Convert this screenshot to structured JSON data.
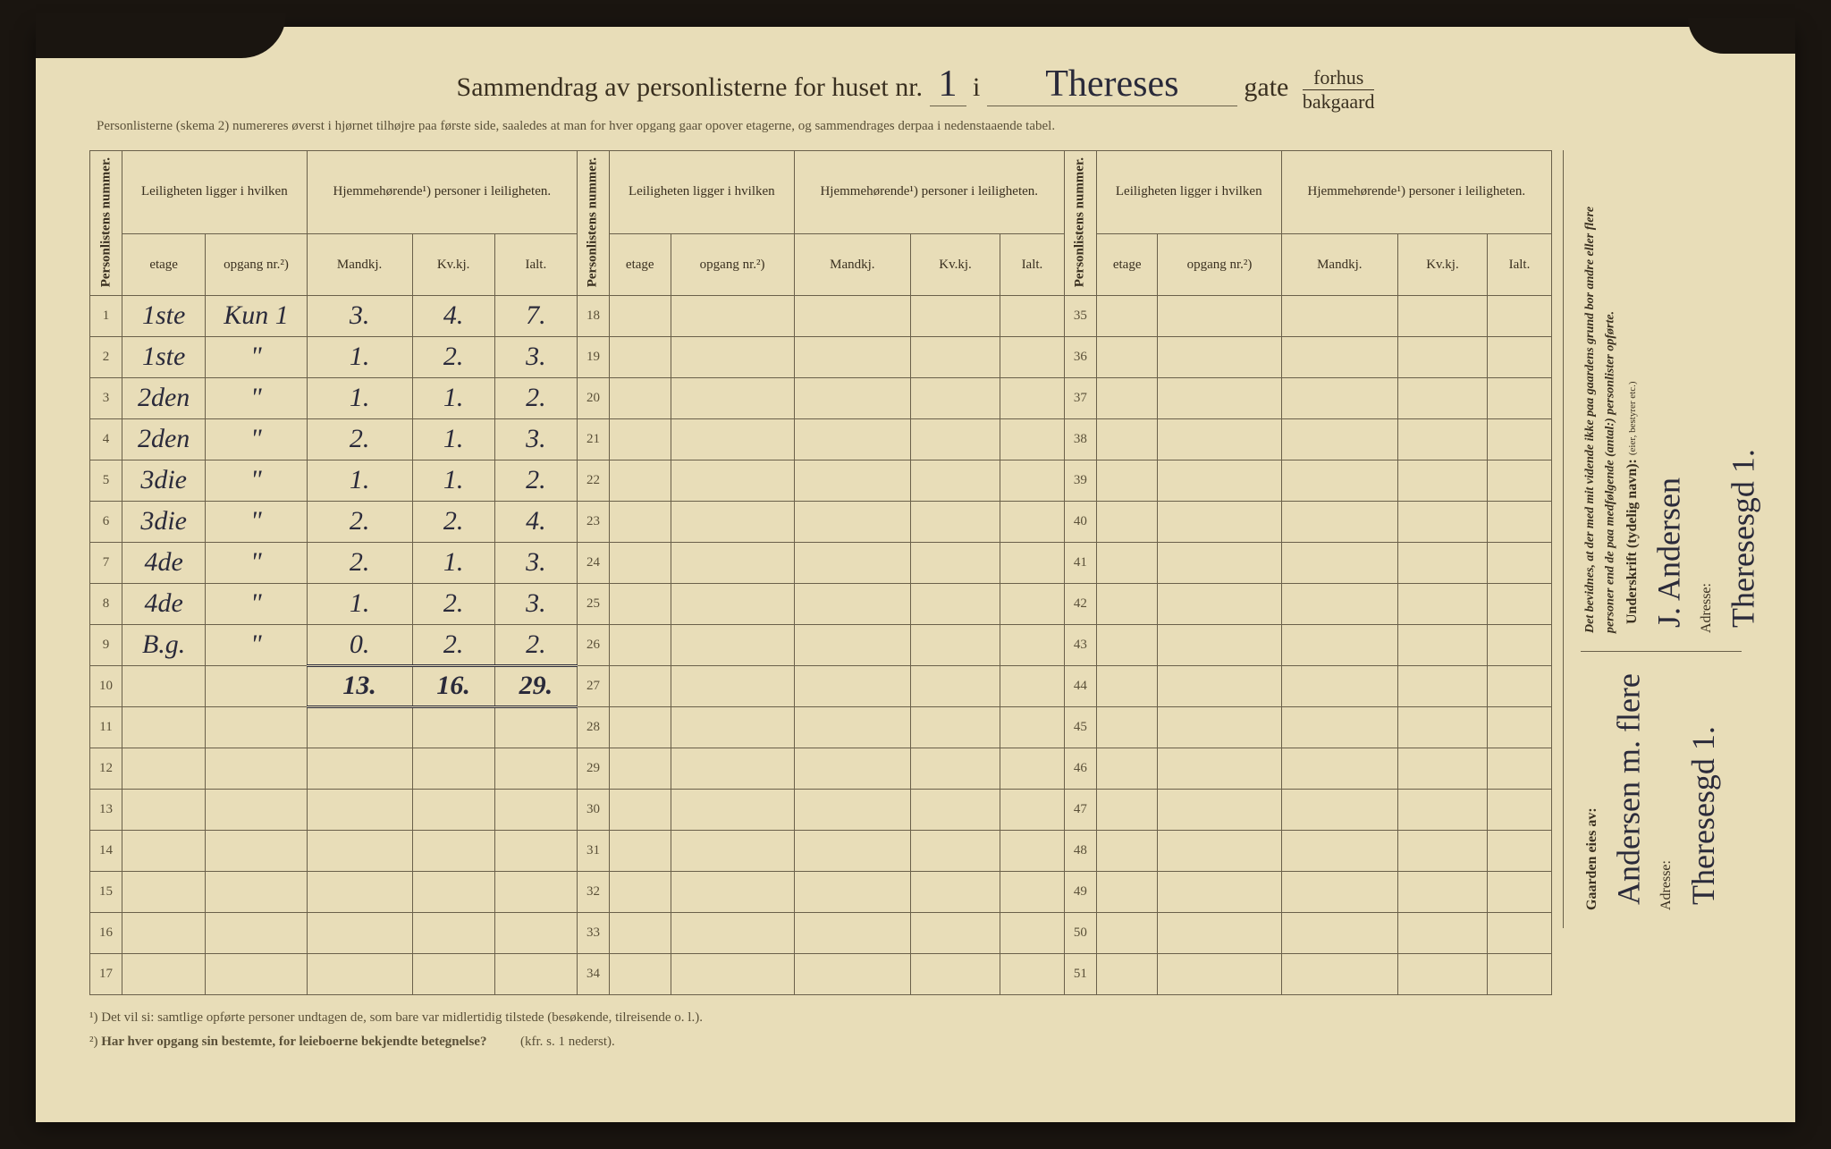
{
  "header": {
    "prefix": "Sammendrag av personlisterne for huset nr.",
    "house_nr": "1",
    "i": "i",
    "street": "Thereses",
    "gate": "gate",
    "frac_top": "forhus",
    "frac_bot": "bakgaard"
  },
  "subheader": "Personlisterne (skema 2) numereres øverst i hjørnet tilhøjre paa første side, saaledes at man for hver opgang gaar opover etagerne, og sammendrages derpaa i nedenstaaende tabel.",
  "colheads": {
    "personlistens": "Personlistens nummer.",
    "leilighet": "Leiligheten ligger i hvilken",
    "hjemme": "Hjemmehørende¹) personer i leiligheten.",
    "etage": "etage",
    "opgang": "opgang nr.²)",
    "mandkj": "Mandkj.",
    "kvkj": "Kv.kj.",
    "ialt": "Ialt."
  },
  "block1": {
    "start": 1,
    "rows": [
      {
        "n": "1",
        "etage": "1ste",
        "opg": "Kun 1",
        "m": "3.",
        "k": "4.",
        "i": "7."
      },
      {
        "n": "2",
        "etage": "1ste",
        "opg": "\"",
        "m": "1.",
        "k": "2.",
        "i": "3."
      },
      {
        "n": "3",
        "etage": "2den",
        "opg": "\"",
        "m": "1.",
        "k": "1.",
        "i": "2."
      },
      {
        "n": "4",
        "etage": "2den",
        "opg": "\"",
        "m": "2.",
        "k": "1.",
        "i": "3."
      },
      {
        "n": "5",
        "etage": "3die",
        "opg": "\"",
        "m": "1.",
        "k": "1.",
        "i": "2."
      },
      {
        "n": "6",
        "etage": "3die",
        "opg": "\"",
        "m": "2.",
        "k": "2.",
        "i": "4."
      },
      {
        "n": "7",
        "etage": "4de",
        "opg": "\"",
        "m": "2.",
        "k": "1.",
        "i": "3."
      },
      {
        "n": "8",
        "etage": "4de",
        "opg": "\"",
        "m": "1.",
        "k": "2.",
        "i": "3."
      },
      {
        "n": "9",
        "etage": "B.g.",
        "opg": "\"",
        "m": "0.",
        "k": "2.",
        "i": "2."
      },
      {
        "n": "10",
        "etage": "",
        "opg": "",
        "m": "13.",
        "k": "16.",
        "i": "29.",
        "total": true
      },
      {
        "n": "11"
      },
      {
        "n": "12"
      },
      {
        "n": "13"
      },
      {
        "n": "14"
      },
      {
        "n": "15"
      },
      {
        "n": "16"
      },
      {
        "n": "17"
      }
    ]
  },
  "block2": {
    "nums": [
      "18",
      "19",
      "20",
      "21",
      "22",
      "23",
      "24",
      "25",
      "26",
      "27",
      "28",
      "29",
      "30",
      "31",
      "32",
      "33",
      "34"
    ]
  },
  "block3": {
    "nums": [
      "35",
      "36",
      "37",
      "38",
      "39",
      "40",
      "41",
      "42",
      "43",
      "44",
      "45",
      "46",
      "47",
      "48",
      "49",
      "50",
      "51"
    ]
  },
  "footnotes": {
    "f1": "¹) Det vil si: samtlige opførte personer undtagen de, som bare var midlertidig tilstede (besøkende, tilreisende o. l.).",
    "f2_a": "²) ",
    "f2_b": "Har hver opgang sin bestemte, for leieboerne bekjendte betegnelse?",
    "f2_c": "(kfr. s. 1 nederst)."
  },
  "side": {
    "attest": "Det bevidnes, at der med mit vidende ikke paa gaardens grund bor andre eller flere personer end de paa medfølgende (antal:)    personlister opførte.",
    "underskrift_label": "Underskrift (tydelig navn):",
    "underskrift": "J. Andersen",
    "sig_addr_label": "Adresse:",
    "sig_addr": "Theresesgd 1.",
    "eies_label": "Gaarden eies av:",
    "eies": "Andersen m. flere",
    "own_addr_label": "Adresse:",
    "own_addr": "Theresesgd 1."
  },
  "small": "(eier, bestyrer etc.)",
  "colors": {
    "paper": "#e8ddb8",
    "ink_print": "#3a3020",
    "ink_hand": "#2a2a3a",
    "rule": "#6a604a",
    "bg": "#1a1510"
  }
}
